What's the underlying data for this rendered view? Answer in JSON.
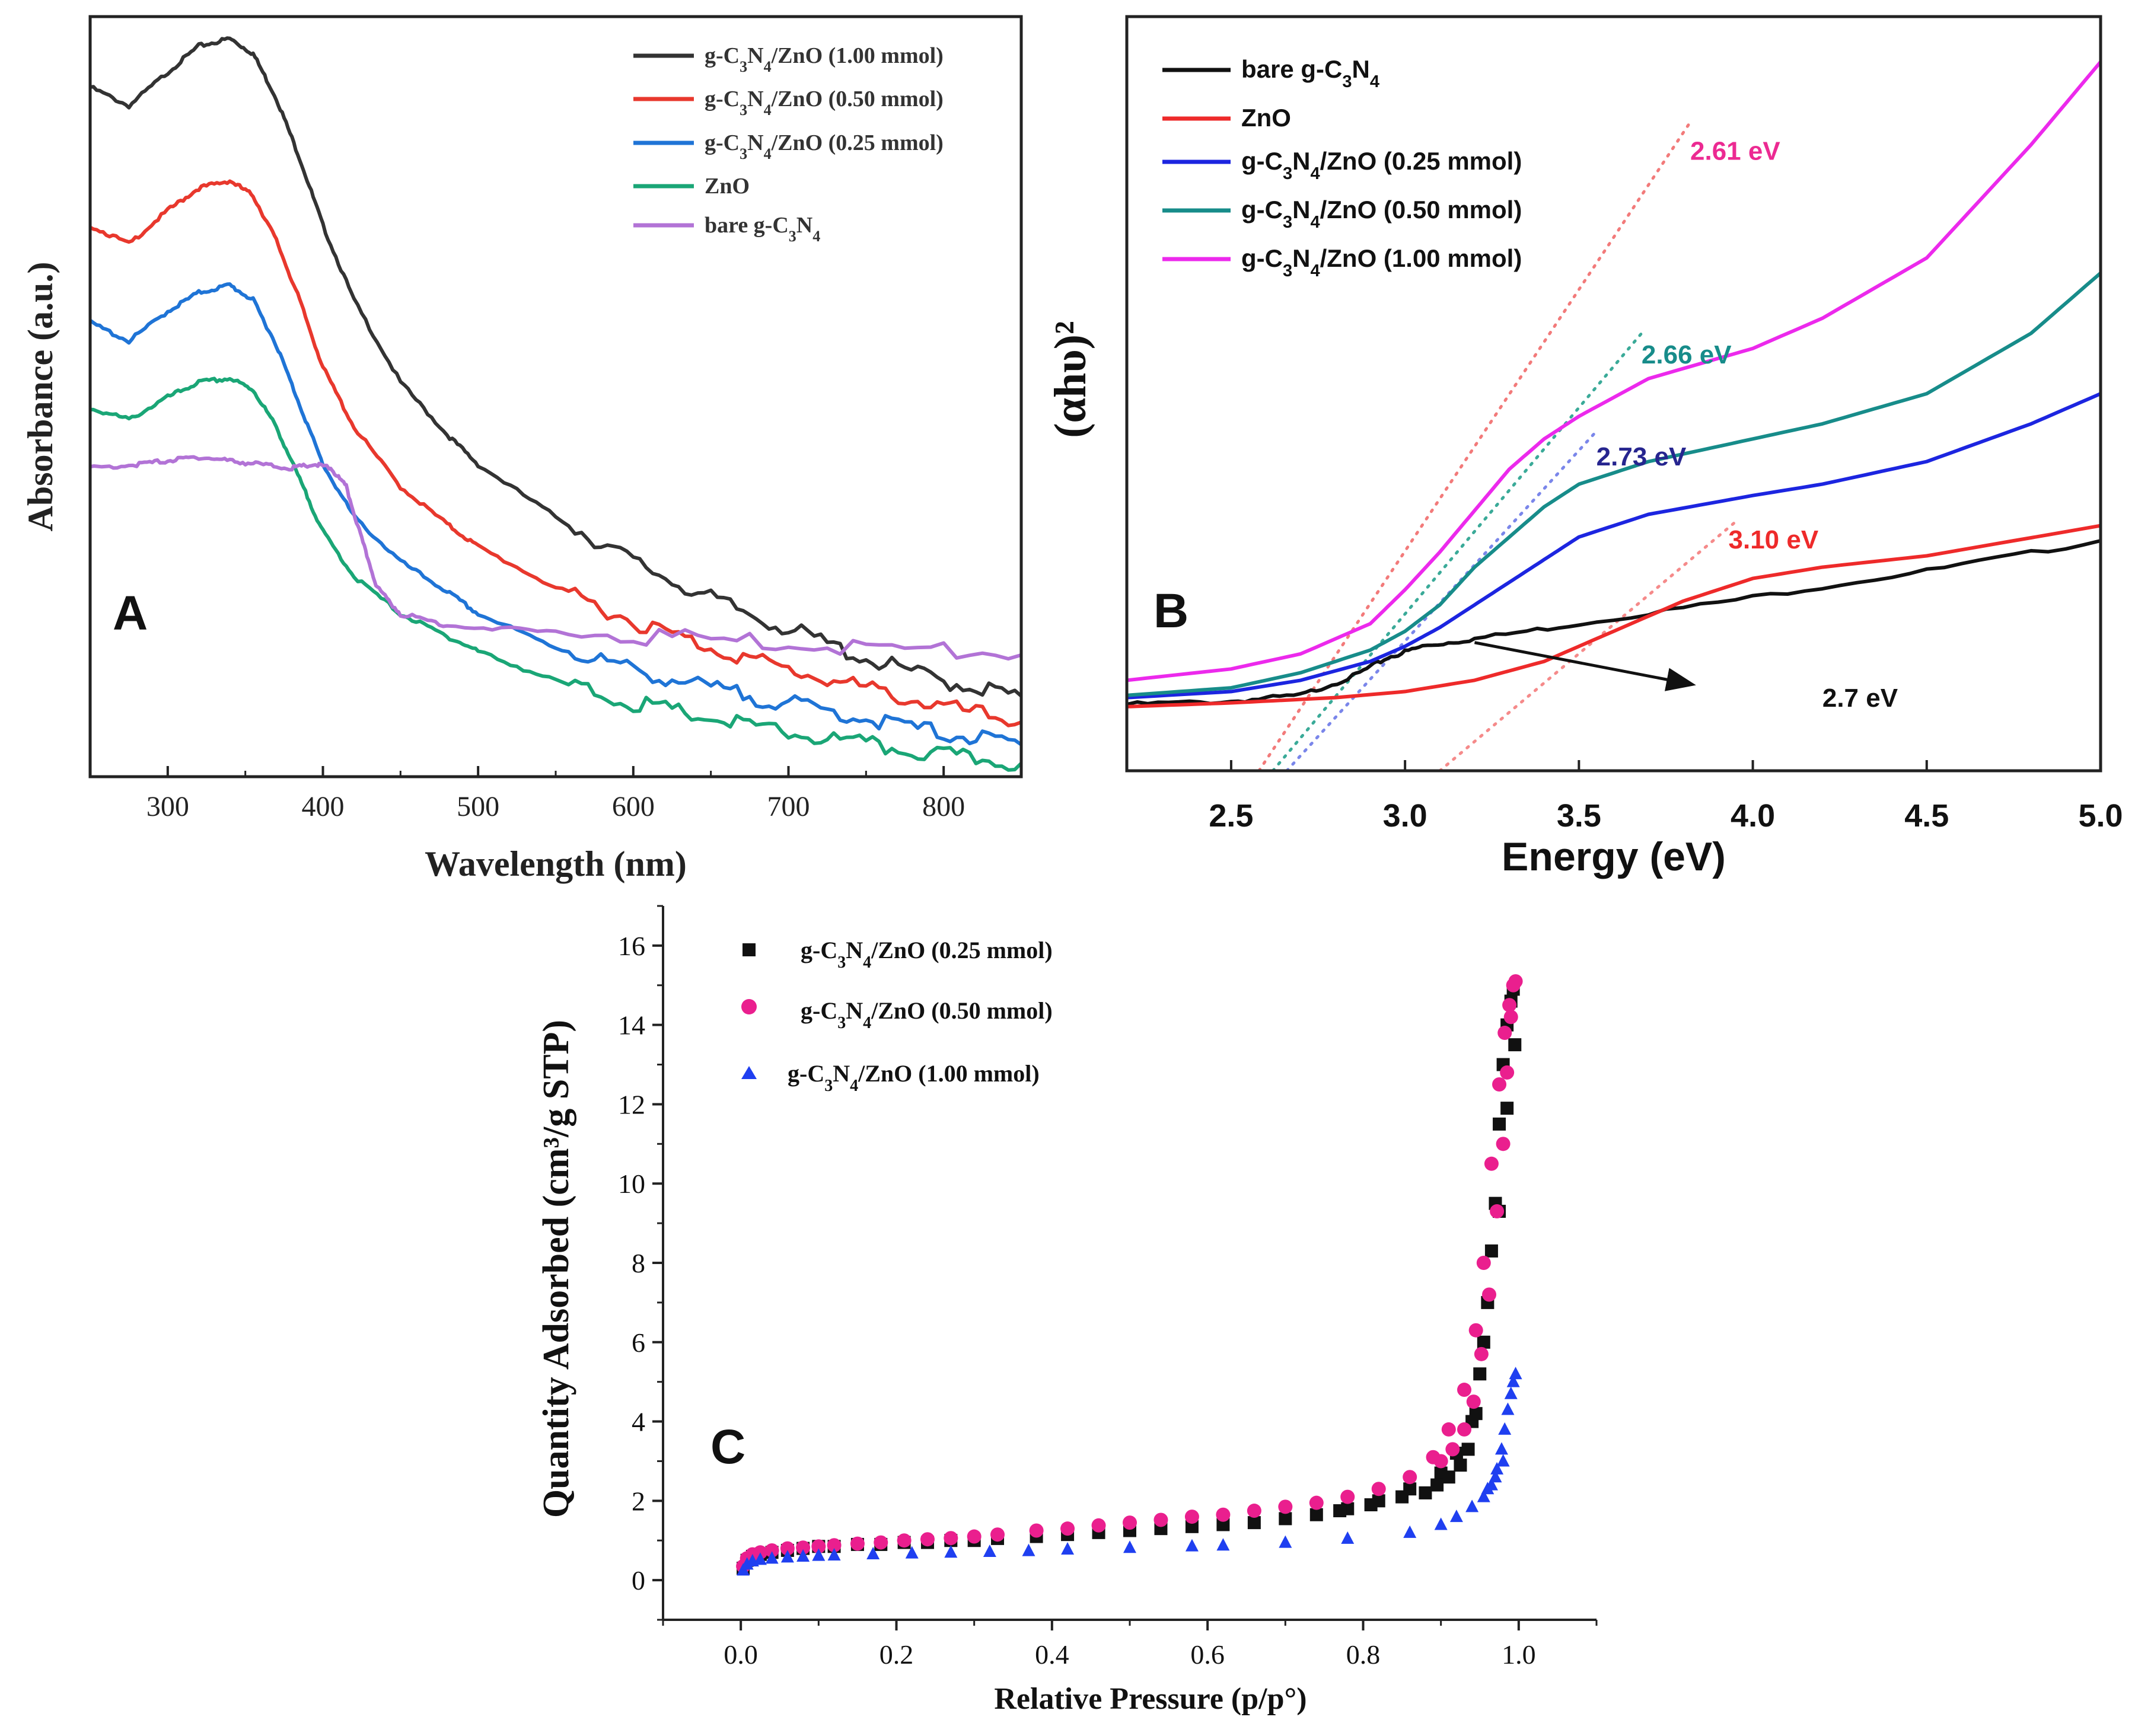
{
  "chart_data": [
    {
      "panel": "A",
      "type": "line",
      "panel_label": "A",
      "xlabel": "Wavelength (nm)",
      "ylabel": "Absorbance (a.u.)",
      "xlim": [
        250,
        850
      ],
      "ylim": [
        0,
        1
      ],
      "x_ticks": [
        300,
        400,
        500,
        600,
        700,
        800
      ],
      "y_ticks_shown": false,
      "legend_position": "top-right",
      "series": [
        {
          "key": "a1",
          "name": "g-C3N4/ZnO (1.00 mmol)",
          "color": "#333333",
          "x": [
            250,
            275,
            300,
            320,
            340,
            355,
            370,
            385,
            400,
            420,
            450,
            480,
            500,
            550,
            600,
            650,
            700,
            750,
            800,
            850
          ],
          "y": [
            0.915,
            0.89,
            0.935,
            0.97,
            0.98,
            0.96,
            0.9,
            0.82,
            0.73,
            0.63,
            0.52,
            0.45,
            0.41,
            0.34,
            0.28,
            0.23,
            0.19,
            0.15,
            0.12,
            0.1
          ]
        },
        {
          "key": "a2",
          "name": "g-C3N4/ZnO (0.50 mmol)",
          "color": "#e8382d",
          "x": [
            250,
            275,
            300,
            320,
            340,
            355,
            370,
            385,
            400,
            420,
            450,
            480,
            500,
            550,
            600,
            650,
            700,
            750,
            800,
            850
          ],
          "y": [
            0.73,
            0.705,
            0.75,
            0.78,
            0.79,
            0.77,
            0.71,
            0.63,
            0.54,
            0.46,
            0.38,
            0.33,
            0.3,
            0.245,
            0.2,
            0.165,
            0.135,
            0.11,
            0.085,
            0.065
          ]
        },
        {
          "key": "a3",
          "name": "g-C3N4/ZnO (0.25 mmol)",
          "color": "#1f74d6",
          "x": [
            250,
            275,
            300,
            320,
            340,
            355,
            370,
            385,
            400,
            420,
            450,
            480,
            500,
            550,
            600,
            650,
            700,
            750,
            800,
            850
          ],
          "y": [
            0.6,
            0.575,
            0.615,
            0.64,
            0.65,
            0.63,
            0.57,
            0.49,
            0.41,
            0.34,
            0.28,
            0.24,
            0.21,
            0.165,
            0.135,
            0.11,
            0.09,
            0.07,
            0.05,
            0.035
          ]
        },
        {
          "key": "a4",
          "name": "ZnO",
          "color": "#1aa676",
          "x": [
            250,
            275,
            300,
            320,
            340,
            355,
            370,
            385,
            400,
            420,
            450,
            480,
            500,
            550,
            600,
            650,
            700,
            750,
            800,
            850
          ],
          "y": [
            0.485,
            0.47,
            0.5,
            0.52,
            0.525,
            0.51,
            0.46,
            0.39,
            0.32,
            0.26,
            0.21,
            0.18,
            0.16,
            0.12,
            0.09,
            0.07,
            0.05,
            0.035,
            0.02,
            0.01
          ]
        },
        {
          "key": "a5",
          "name": "bare g-C3N4",
          "color": "#b273d6",
          "x": [
            250,
            280,
            300,
            320,
            340,
            360,
            380,
            395,
            405,
            415,
            425,
            435,
            450,
            480,
            550,
            650,
            750,
            850
          ],
          "y": [
            0.405,
            0.41,
            0.415,
            0.42,
            0.415,
            0.41,
            0.405,
            0.41,
            0.405,
            0.38,
            0.31,
            0.245,
            0.21,
            0.195,
            0.185,
            0.175,
            0.165,
            0.155
          ]
        }
      ]
    },
    {
      "panel": "B",
      "type": "line",
      "panel_label": "B",
      "xlabel": "Energy (eV)",
      "ylabel": "(αhυ)²",
      "xlim": [
        2.2,
        5.0
      ],
      "ylim": [
        0,
        1
      ],
      "x_ticks": [
        "2.5",
        "3.0",
        "3.5",
        "4.0",
        "4.5",
        "5.0"
      ],
      "y_ticks_shown": false,
      "legend_position": "top-left",
      "series": [
        {
          "key": "b1",
          "name": "bare g-C3N4",
          "color": "#111111",
          "x": [
            2.2,
            2.5,
            2.7,
            2.85,
            2.95,
            3.05,
            3.2,
            3.5,
            4.0,
            4.5,
            5.0
          ],
          "y": [
            0.088,
            0.092,
            0.1,
            0.125,
            0.15,
            0.165,
            0.175,
            0.195,
            0.23,
            0.265,
            0.305
          ]
        },
        {
          "key": "b2",
          "name": "ZnO",
          "color": "#ee2a2a",
          "x": [
            2.2,
            2.5,
            2.8,
            3.0,
            3.2,
            3.4,
            3.6,
            3.8,
            3.9,
            4.0,
            4.2,
            4.5,
            5.0
          ],
          "y": [
            0.085,
            0.09,
            0.097,
            0.105,
            0.12,
            0.145,
            0.185,
            0.225,
            0.24,
            0.255,
            0.27,
            0.285,
            0.325
          ]
        },
        {
          "key": "b3",
          "name": "g-C3N4/ZnO (0.25 mmol)",
          "color": "#1c25e0",
          "x": [
            2.2,
            2.5,
            2.7,
            2.9,
            3.0,
            3.1,
            3.2,
            3.3,
            3.4,
            3.5,
            3.7,
            4.0,
            4.2,
            4.5,
            4.8,
            5.0
          ],
          "y": [
            0.097,
            0.105,
            0.12,
            0.145,
            0.165,
            0.19,
            0.22,
            0.25,
            0.28,
            0.31,
            0.34,
            0.365,
            0.38,
            0.41,
            0.46,
            0.5
          ]
        },
        {
          "key": "b4",
          "name": "g-C3N4/ZnO (0.50 mmol)",
          "color": "#178c8a",
          "x": [
            2.2,
            2.5,
            2.7,
            2.9,
            3.0,
            3.1,
            3.2,
            3.3,
            3.4,
            3.5,
            3.7,
            4.0,
            4.2,
            4.5,
            4.8,
            5.0
          ],
          "y": [
            0.1,
            0.11,
            0.13,
            0.16,
            0.185,
            0.22,
            0.27,
            0.31,
            0.35,
            0.38,
            0.41,
            0.44,
            0.46,
            0.5,
            0.58,
            0.66
          ]
        },
        {
          "key": "b5",
          "name": "g-C3N4/ZnO (1.00 mmol)",
          "color": "#ec29ec",
          "x": [
            2.2,
            2.5,
            2.7,
            2.9,
            3.0,
            3.1,
            3.2,
            3.3,
            3.4,
            3.5,
            3.7,
            4.0,
            4.2,
            4.5,
            4.8,
            5.0
          ],
          "y": [
            0.12,
            0.135,
            0.155,
            0.195,
            0.24,
            0.29,
            0.345,
            0.4,
            0.44,
            0.47,
            0.52,
            0.56,
            0.6,
            0.68,
            0.83,
            0.94
          ]
        }
      ],
      "tangent_lines": [
        {
          "key": "t1",
          "color": "#f27a7a",
          "x": [
            2.58,
            3.82
          ],
          "y": [
            0.0,
            0.86
          ]
        },
        {
          "key": "t2",
          "color": "#3aaa98",
          "x": [
            2.62,
            3.68
          ],
          "y": [
            0.0,
            0.58
          ]
        },
        {
          "key": "t3",
          "color": "#7a86ea",
          "x": [
            2.66,
            3.55
          ],
          "y": [
            0.0,
            0.45
          ]
        },
        {
          "key": "t4",
          "color": "#f58a8a",
          "x": [
            3.1,
            3.95
          ],
          "y": [
            0.0,
            0.33
          ]
        }
      ],
      "annotations": [
        {
          "key": "n1",
          "text": "2.61 eV",
          "color": "#ec2a92",
          "x": 3.82,
          "y": 0.81
        },
        {
          "key": "n2",
          "text": "2.66 eV",
          "color": "#178c8a",
          "x": 3.68,
          "y": 0.54
        },
        {
          "key": "n3",
          "text": "2.73 eV",
          "color": "#26258f",
          "x": 3.55,
          "y": 0.405
        },
        {
          "key": "n4",
          "text": "3.10 eV",
          "color": "#ee2a2a",
          "x": 3.93,
          "y": 0.295
        },
        {
          "key": "n5",
          "text": "2.7 eV",
          "color": "#111111",
          "x": 4.2,
          "y": 0.085
        }
      ],
      "arrow": {
        "from": [
          3.2,
          0.17
        ],
        "to": [
          3.82,
          0.115
        ]
      }
    },
    {
      "panel": "C",
      "type": "scatter",
      "panel_label": "C",
      "xlabel": "Relative Pressure (p/p°)",
      "ylabel": "Quantity Adsorbed (cm³/g STP)",
      "xlim": [
        -0.1,
        1.1
      ],
      "ylim": [
        -1,
        17
      ],
      "x_ticks": [
        "0.0",
        "0.2",
        "0.4",
        "0.6",
        "0.8",
        "1.0"
      ],
      "y_ticks": [
        "0",
        "2",
        "4",
        "6",
        "8",
        "10",
        "12",
        "14",
        "16"
      ],
      "legend_position": "top-left",
      "series": [
        {
          "key": "c1",
          "name": "g-C3N4/ZnO (0.25 mmol)",
          "color": "#111111",
          "marker": "square",
          "x": [
            0.003,
            0.008,
            0.015,
            0.025,
            0.04,
            0.06,
            0.08,
            0.1,
            0.12,
            0.15,
            0.18,
            0.21,
            0.24,
            0.27,
            0.3,
            0.33,
            0.38,
            0.42,
            0.46,
            0.5,
            0.54,
            0.58,
            0.62,
            0.66,
            0.7,
            0.74,
            0.78,
            0.82,
            0.86,
            0.9,
            0.92,
            0.94,
            0.95,
            0.96,
            0.97,
            0.975,
            0.98,
            0.985,
            0.99,
            0.993,
            0.995,
            0.985,
            0.975,
            0.965,
            0.955,
            0.945,
            0.935,
            0.925,
            0.91,
            0.895,
            0.88,
            0.85,
            0.81,
            0.77
          ],
          "y": [
            0.3,
            0.5,
            0.6,
            0.65,
            0.7,
            0.75,
            0.8,
            0.85,
            0.85,
            0.9,
            0.9,
            0.95,
            0.95,
            1.0,
            1.0,
            1.05,
            1.1,
            1.15,
            1.2,
            1.25,
            1.3,
            1.35,
            1.4,
            1.45,
            1.55,
            1.65,
            1.8,
            2.0,
            2.3,
            2.7,
            3.2,
            4.0,
            5.2,
            7.0,
            9.5,
            11.5,
            13.0,
            14.0,
            14.6,
            14.9,
            13.5,
            11.9,
            9.3,
            8.3,
            6.0,
            4.2,
            3.3,
            2.9,
            2.6,
            2.4,
            2.2,
            2.1,
            1.9,
            1.75
          ]
        },
        {
          "key": "c2",
          "name": "g-C3N4/ZnO (0.50 mmol)",
          "color": "#ea1f8e",
          "marker": "circle",
          "x": [
            0.003,
            0.008,
            0.015,
            0.025,
            0.04,
            0.06,
            0.08,
            0.1,
            0.12,
            0.15,
            0.18,
            0.21,
            0.24,
            0.27,
            0.3,
            0.33,
            0.38,
            0.42,
            0.46,
            0.5,
            0.54,
            0.58,
            0.62,
            0.66,
            0.7,
            0.74,
            0.78,
            0.82,
            0.86,
            0.89,
            0.91,
            0.93,
            0.945,
            0.955,
            0.965,
            0.975,
            0.982,
            0.988,
            0.993,
            0.996,
            0.99,
            0.985,
            0.98,
            0.972,
            0.962,
            0.952,
            0.942,
            0.93,
            0.915,
            0.9
          ],
          "y": [
            0.35,
            0.55,
            0.65,
            0.7,
            0.75,
            0.8,
            0.82,
            0.85,
            0.88,
            0.92,
            0.95,
            1.0,
            1.03,
            1.06,
            1.1,
            1.15,
            1.25,
            1.3,
            1.38,
            1.45,
            1.52,
            1.6,
            1.65,
            1.75,
            1.85,
            1.95,
            2.1,
            2.3,
            2.6,
            3.1,
            3.8,
            4.8,
            6.3,
            8.0,
            10.5,
            12.5,
            13.8,
            14.5,
            15.0,
            15.1,
            14.2,
            12.8,
            11.0,
            9.3,
            7.2,
            5.7,
            4.5,
            3.8,
            3.3,
            3.0
          ]
        },
        {
          "key": "c3",
          "name": "g-C3N4/ZnO (1.00 mmol)",
          "color": "#1f3ff0",
          "marker": "triangle",
          "x": [
            0.003,
            0.008,
            0.015,
            0.025,
            0.04,
            0.06,
            0.08,
            0.1,
            0.12,
            0.17,
            0.22,
            0.27,
            0.32,
            0.37,
            0.42,
            0.5,
            0.58,
            0.62,
            0.7,
            0.78,
            0.86,
            0.9,
            0.92,
            0.94,
            0.955,
            0.965,
            0.972,
            0.978,
            0.982,
            0.986,
            0.99,
            0.993,
            0.996,
            0.98,
            0.97,
            0.96
          ],
          "y": [
            0.25,
            0.4,
            0.48,
            0.52,
            0.55,
            0.58,
            0.6,
            0.62,
            0.63,
            0.66,
            0.68,
            0.7,
            0.72,
            0.74,
            0.78,
            0.82,
            0.86,
            0.88,
            0.95,
            1.05,
            1.2,
            1.4,
            1.6,
            1.85,
            2.1,
            2.4,
            2.8,
            3.3,
            3.8,
            4.3,
            4.7,
            5.0,
            5.2,
            3.0,
            2.6,
            2.3
          ]
        }
      ]
    }
  ],
  "legend_text": {
    "a1": {
      "pre": "g-C",
      "s1": "3",
      "mid": "N",
      "s2": "4",
      "post": "/ZnO (1.00 mmol)"
    },
    "a2": {
      "pre": "g-C",
      "s1": "3",
      "mid": "N",
      "s2": "4",
      "post": "/ZnO (0.50 mmol)"
    },
    "a3": {
      "pre": "g-C",
      "s1": "3",
      "mid": "N",
      "s2": "4",
      "post": "/ZnO (0.25 mmol)"
    },
    "a4": {
      "pre": "ZnO",
      "s1": "",
      "mid": "",
      "s2": "",
      "post": ""
    },
    "a5": {
      "pre": "bare g-C",
      "s1": "3",
      "mid": "N",
      "s2": "4",
      "post": ""
    },
    "b1": {
      "pre": "bare g-C",
      "s1": "3",
      "mid": "N",
      "s2": "4",
      "post": ""
    },
    "b2": {
      "pre": "ZnO",
      "s1": "",
      "mid": "",
      "s2": "",
      "post": ""
    },
    "b3": {
      "pre": "g-C",
      "s1": "3",
      "mid": "N",
      "s2": "4",
      "post": "/ZnO (0.25 mmol)"
    },
    "b4": {
      "pre": "g-C",
      "s1": "3",
      "mid": "N",
      "s2": "4",
      "post": "/ZnO (0.50 mmol)"
    },
    "b5": {
      "pre": "g-C",
      "s1": "3",
      "mid": "N",
      "s2": "4",
      "post": "/ZnO (1.00 mmol)"
    },
    "c1": {
      "pre": "g-C",
      "s1": "3",
      "mid": "N",
      "s2": "4",
      "post": "/ZnO (0.25 mmol)"
    },
    "c2": {
      "pre": "g-C",
      "s1": "3",
      "mid": "N",
      "s2": "4",
      "post": "/ZnO (0.50 mmol)"
    },
    "c3": {
      "pre": "g-C",
      "s1": "3",
      "mid": "N",
      "s2": "4",
      "post": "/ZnO (1.00 mmol)"
    }
  }
}
